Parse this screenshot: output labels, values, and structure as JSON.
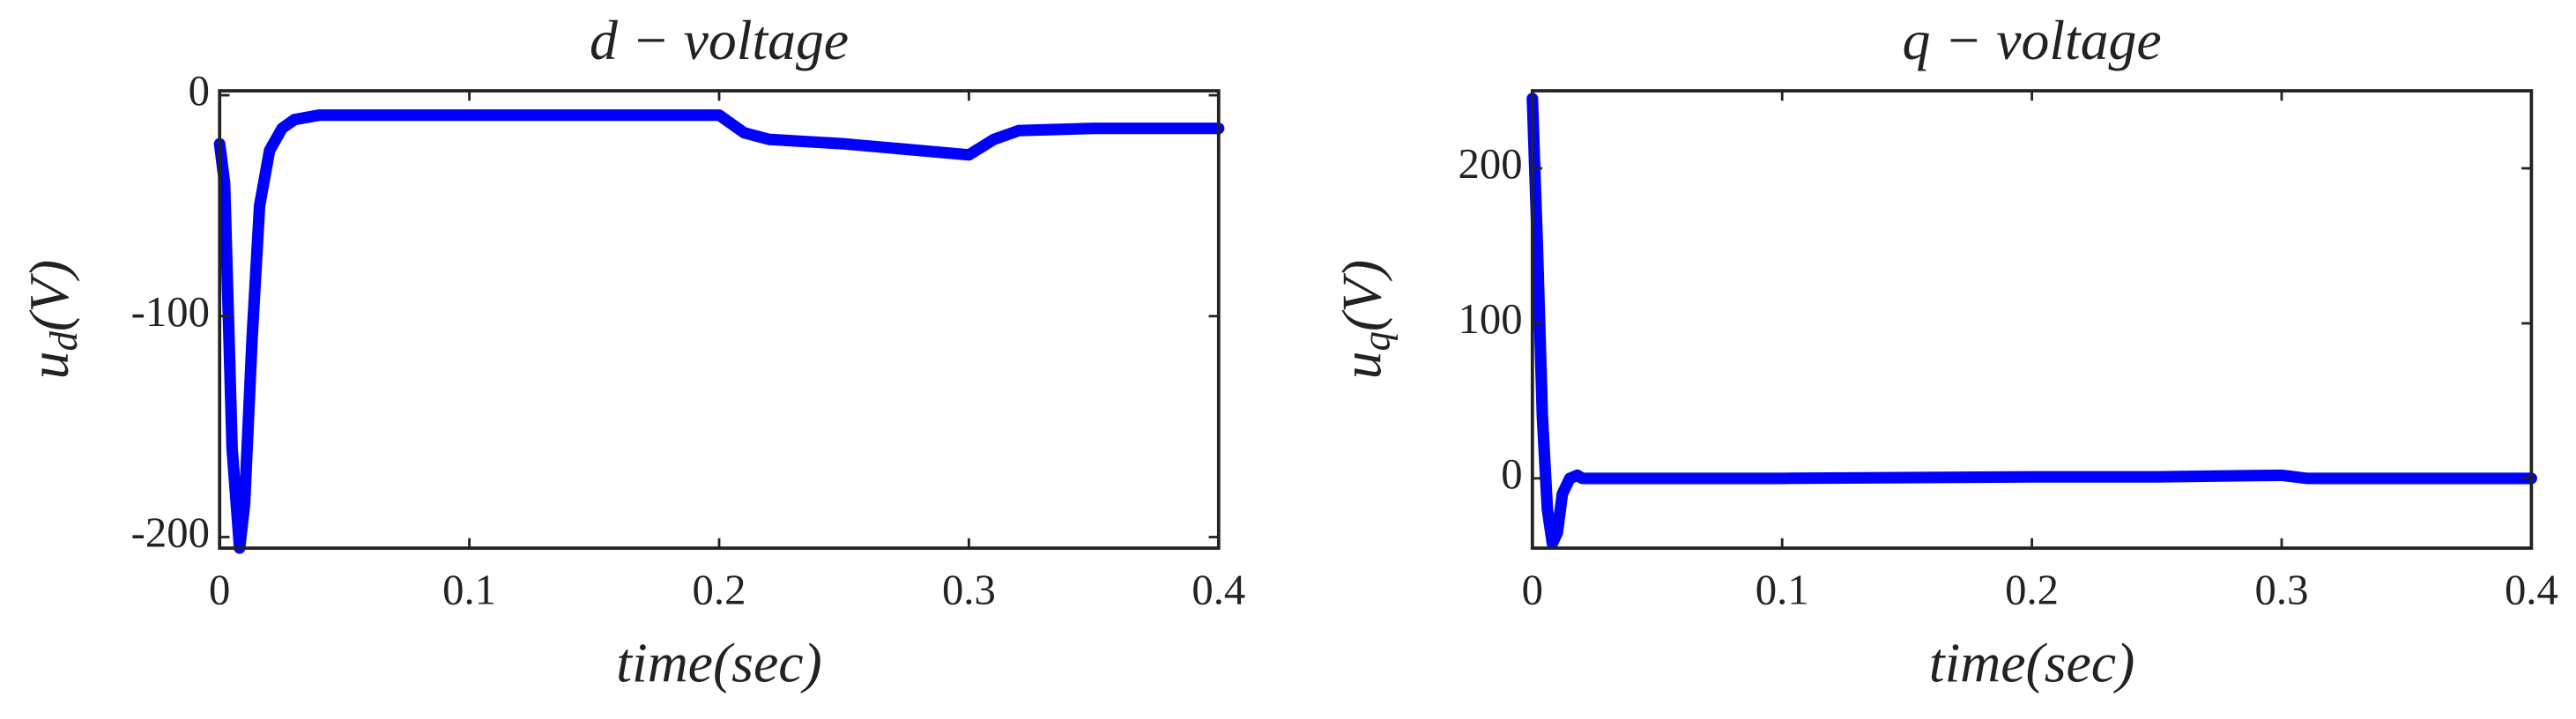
{
  "chart_data": [
    {
      "type": "line",
      "title": "d − voltage",
      "xlabel": "time(sec)",
      "ylabel": [
        "u",
        "d",
        "(V)"
      ],
      "xlim": [
        0,
        0.4
      ],
      "xticks": [
        0,
        0.1,
        0.2,
        0.3,
        0.4
      ],
      "ylim": [
        -205,
        2
      ],
      "yticks": [
        -200,
        -100,
        0
      ],
      "series": [
        {
          "color": "#0000ff",
          "x": [
            0,
            0.002,
            0.005,
            0.008,
            0.01,
            0.013,
            0.016,
            0.02,
            0.025,
            0.03,
            0.04,
            0.05,
            0.1,
            0.15,
            0.2,
            0.21,
            0.22,
            0.25,
            0.3,
            0.31,
            0.32,
            0.35,
            0.4
          ],
          "values": [
            -22,
            -40,
            -160,
            -205,
            -185,
            -110,
            -50,
            -25,
            -15,
            -11,
            -9,
            -9,
            -9,
            -9,
            -9,
            -17,
            -20,
            -22,
            -27,
            -20,
            -16,
            -15,
            -15
          ]
        }
      ]
    },
    {
      "type": "line",
      "title": "q − voltage",
      "xlabel": "time(sec)",
      "ylabel": [
        "u",
        "q",
        "(V)"
      ],
      "xlim": [
        0,
        0.4
      ],
      "xticks": [
        0,
        0.1,
        0.2,
        0.3,
        0.4
      ],
      "ylim": [
        -45,
        250
      ],
      "yticks": [
        0,
        100,
        200
      ],
      "series": [
        {
          "color": "#0000ff",
          "x": [
            0,
            0.002,
            0.004,
            0.006,
            0.008,
            0.01,
            0.012,
            0.015,
            0.018,
            0.02,
            0.025,
            0.1,
            0.2,
            0.25,
            0.3,
            0.31,
            0.4
          ],
          "values": [
            245,
            150,
            40,
            -20,
            -42,
            -35,
            -10,
            0,
            2,
            0,
            0,
            0,
            1,
            1,
            2,
            0,
            0
          ]
        }
      ]
    }
  ]
}
